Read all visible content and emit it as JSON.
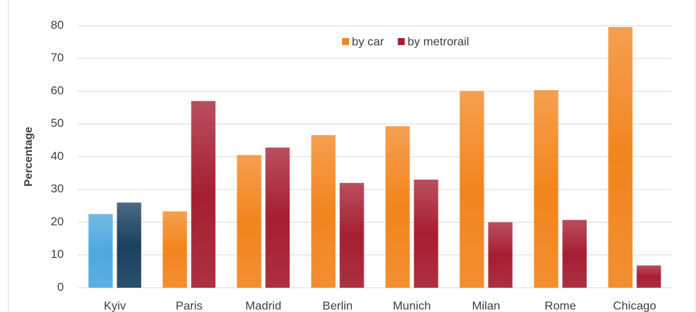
{
  "chart_data": {
    "type": "bar",
    "y_label": "Percentage",
    "categories": [
      "Kyiv",
      "Paris",
      "Madrid",
      "Berlin",
      "Munich",
      "Milan",
      "Rome",
      "Chicago"
    ],
    "series": [
      {
        "name": "by car",
        "color": "#f2851e",
        "colors": [
          "#4ea8de",
          "#f2851e",
          "#f2851e",
          "#f2851e",
          "#f2851e",
          "#f2851e",
          "#f2851e",
          "#f2851e"
        ],
        "values": [
          22.5,
          23.3,
          40.5,
          46.6,
          49.3,
          60,
          60.3,
          79.6
        ]
      },
      {
        "name": "by metrorail",
        "color": "#a61e32",
        "colors": [
          "#1a4060",
          "#a61e32",
          "#a61e32",
          "#a61e32",
          "#a61e32",
          "#a61e32",
          "#a61e32",
          "#a61e32"
        ],
        "values": [
          26,
          57,
          42.8,
          32,
          33,
          20,
          20.7,
          6.8
        ]
      }
    ],
    "ylim": [
      0,
      80
    ],
    "yticks": [
      0,
      10,
      20,
      30,
      40,
      50,
      60,
      70,
      80
    ],
    "grid": true,
    "legend": "top"
  }
}
